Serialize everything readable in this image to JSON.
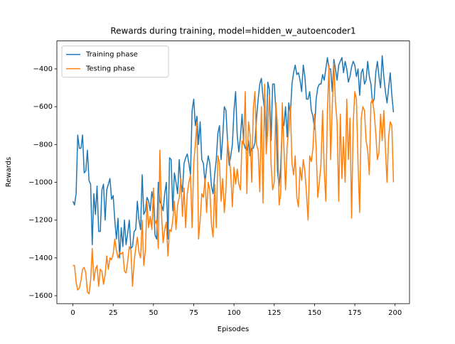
{
  "chart_data": {
    "type": "line",
    "title": "Rewards during training, model=hidden_w_autoencoder1",
    "xlabel": "Episodes",
    "ylabel": "Rewards",
    "x": [
      0,
      1,
      2,
      3,
      4,
      5,
      6,
      7,
      8,
      9,
      10,
      11,
      12,
      13,
      14,
      15,
      16,
      17,
      18,
      19,
      20,
      21,
      22,
      23,
      24,
      25,
      26,
      27,
      28,
      29,
      30,
      31,
      32,
      33,
      34,
      35,
      36,
      37,
      38,
      39,
      40,
      41,
      42,
      43,
      44,
      45,
      46,
      47,
      48,
      49,
      50,
      51,
      52,
      53,
      54,
      55,
      56,
      57,
      58,
      59,
      60,
      61,
      62,
      63,
      64,
      65,
      66,
      67,
      68,
      69,
      70,
      71,
      72,
      73,
      74,
      75,
      76,
      77,
      78,
      79,
      80,
      81,
      82,
      83,
      84,
      85,
      86,
      87,
      88,
      89,
      90,
      91,
      92,
      93,
      94,
      95,
      96,
      97,
      98,
      99,
      100,
      101,
      102,
      103,
      104,
      105,
      106,
      107,
      108,
      109,
      110,
      111,
      112,
      113,
      114,
      115,
      116,
      117,
      118,
      119,
      120,
      121,
      122,
      123,
      124,
      125,
      126,
      127,
      128,
      129,
      130,
      131,
      132,
      133,
      134,
      135,
      136,
      137,
      138,
      139,
      140,
      141,
      142,
      143,
      144,
      145,
      146,
      147,
      148,
      149,
      150,
      151,
      152,
      153,
      154,
      155,
      156,
      157,
      158,
      159,
      160,
      161,
      162,
      163,
      164,
      165,
      166,
      167,
      168,
      169,
      170,
      171,
      172,
      173,
      174,
      175,
      176,
      177,
      178,
      179,
      180,
      181,
      182,
      183,
      184,
      185,
      186,
      187,
      188,
      189,
      190,
      191,
      192,
      193,
      194,
      195,
      196,
      197,
      198,
      199
    ],
    "series": [
      {
        "name": "Training phase",
        "color": "#1f77b4",
        "values": [
          -1100,
          -1120,
          -1060,
          -750,
          -820,
          -820,
          -750,
          -950,
          -940,
          -830,
          -990,
          -1010,
          -1330,
          -1060,
          -1170,
          -1020,
          -1260,
          -1260,
          -1040,
          -1010,
          -1200,
          -1040,
          -1010,
          -980,
          -1090,
          -1070,
          -1200,
          -1300,
          -1190,
          -1400,
          -1240,
          -1340,
          -1200,
          -1330,
          -1270,
          -1200,
          -1350,
          -1340,
          -1260,
          -1250,
          -1100,
          -1200,
          -1250,
          -960,
          -1170,
          -1150,
          -1080,
          -1100,
          -1150,
          -1050,
          -1100,
          -1280,
          -1300,
          -1000,
          -1100,
          -1120,
          -1150,
          -1060,
          -1000,
          -1300,
          -870,
          -880,
          -1150,
          -950,
          -1000,
          -1060,
          -880,
          -1000,
          -1050,
          -900,
          -870,
          -850,
          -900,
          -960,
          -620,
          -560,
          -700,
          -650,
          -800,
          -680,
          -880,
          -900,
          -1000,
          -920,
          -860,
          -900,
          -1020,
          -1060,
          -960,
          -880,
          -740,
          -700,
          -880,
          -760,
          -600,
          -620,
          -780,
          -910,
          -860,
          -800,
          -620,
          -520,
          -750,
          -840,
          -760,
          -640,
          -790,
          -820,
          -830,
          -780,
          -860,
          -820,
          -820,
          -790,
          -660,
          -560,
          -480,
          -450,
          -550,
          -620,
          -780,
          -470,
          -510,
          -780,
          -480,
          -480,
          -620,
          -940,
          -1020,
          -920,
          -680,
          -700,
          -600,
          -760,
          -580,
          -640,
          -480,
          -420,
          -380,
          -430,
          -420,
          -460,
          -520,
          -380,
          -440,
          -560,
          -560,
          -520,
          -620,
          -650,
          -720,
          -560,
          -500,
          -480,
          -480,
          -430,
          -460,
          -400,
          -340,
          -400,
          -400,
          -520,
          -350,
          -400,
          -460,
          -380,
          -360,
          -340,
          -420,
          -360,
          -400,
          -470,
          -440,
          -390,
          -360,
          -380,
          -440,
          -400,
          -540,
          -420,
          -400,
          -480,
          -460,
          -360,
          -440,
          -480,
          -580,
          -560,
          -420,
          -360,
          -440,
          -500,
          -330,
          -440,
          -520,
          -580,
          -500,
          -420,
          -540,
          -630
        ]
      },
      {
        "name": "Testing phase",
        "color": "#ff7f0e",
        "values": [
          -1440,
          -1440,
          -1530,
          -1570,
          -1560,
          -1520,
          -1460,
          -1450,
          -1480,
          -1580,
          -1590,
          -1520,
          -1350,
          -1520,
          -1460,
          -1440,
          -1550,
          -1460,
          -1470,
          -1540,
          -1490,
          -1390,
          -1460,
          -1400,
          -1410,
          -1380,
          -1300,
          -1360,
          -1400,
          -1370,
          -1380,
          -1370,
          -1470,
          -1480,
          -1420,
          -1340,
          -1360,
          -1550,
          -1420,
          -1350,
          -1290,
          -1370,
          -1400,
          -1200,
          -1440,
          -1360,
          -1100,
          -1240,
          -1180,
          -1250,
          -1030,
          -1220,
          -1200,
          -1350,
          -830,
          -1170,
          -1320,
          -1250,
          -1210,
          -1390,
          -1250,
          -1260,
          -1200,
          -1100,
          -1250,
          -1120,
          -1080,
          -980,
          -1180,
          -1030,
          -1240,
          -1060,
          -1000,
          -960,
          -1240,
          -900,
          -800,
          -680,
          -1300,
          -1200,
          -1060,
          -1080,
          -980,
          -1160,
          -1000,
          -1040,
          -1220,
          -1290,
          -1010,
          -1240,
          -860,
          -900,
          -1100,
          -980,
          -1160,
          -1040,
          -780,
          -850,
          -960,
          -1130,
          -920,
          -1010,
          -930,
          -1010,
          -1040,
          -780,
          -800,
          -520,
          -1060,
          -680,
          -750,
          -1000,
          -610,
          -520,
          -800,
          -830,
          -1050,
          -600,
          -1110,
          -480,
          -850,
          -720,
          -540,
          -900,
          -1040,
          -1000,
          -580,
          -700,
          -1120,
          -1060,
          -580,
          -820,
          -1040,
          -810,
          -720,
          -600,
          -900,
          -960,
          -860,
          -1080,
          -1130,
          -920,
          -990,
          -880,
          -940,
          -1060,
          -1200,
          -860,
          -890,
          -820,
          -640,
          -820,
          -1080,
          -1000,
          -900,
          -620,
          -930,
          -1100,
          -620,
          -380,
          -880,
          -600,
          -370,
          -580,
          -680,
          -1100,
          -640,
          -980,
          -760,
          -1000,
          -560,
          -880,
          -660,
          -1190,
          -690,
          -520,
          -560,
          -900,
          -1160,
          -660,
          -600,
          -620,
          -780,
          -830,
          -960,
          -580,
          -560,
          -630,
          -740,
          -880,
          -840,
          -640,
          -780,
          -620,
          -820,
          -1000,
          -760,
          -680,
          -700,
          -1000
        ]
      }
    ],
    "xlim": [
      -9.95,
      208.95
    ],
    "xticks": [
      0,
      25,
      50,
      75,
      100,
      125,
      150,
      175,
      200
    ],
    "ylim": [
      -1642,
      -252
    ],
    "yticks": [
      {
        "value": -1600,
        "label": "−1600"
      },
      {
        "value": -1400,
        "label": "−1400"
      },
      {
        "value": -1200,
        "label": "−1200"
      },
      {
        "value": -1000,
        "label": "−1000"
      },
      {
        "value": -800,
        "label": "−800"
      },
      {
        "value": -600,
        "label": "−600"
      },
      {
        "value": -400,
        "label": "−400"
      }
    ],
    "legend": "upper left"
  }
}
